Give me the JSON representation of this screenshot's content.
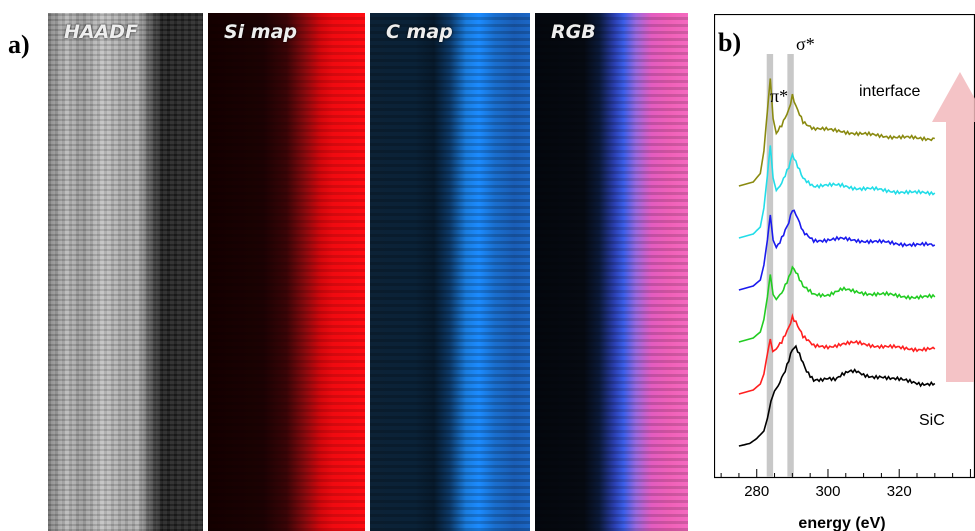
{
  "panel_a": {
    "label": "a)",
    "maps": [
      {
        "title": "HAADF"
      },
      {
        "title": "Si map"
      },
      {
        "title": "C map"
      },
      {
        "title": "RGB"
      }
    ]
  },
  "panel_b": {
    "label": "b)",
    "pi_label": "π*",
    "sigma_label": "σ*",
    "top_annotation": "interface",
    "bottom_annotation": "SiC"
  },
  "chart_data": {
    "type": "line",
    "xlabel": "energy (eV)",
    "ylabel": "",
    "xlim": [
      275,
      330
    ],
    "xticks": [
      280,
      300,
      320
    ],
    "series": [
      {
        "color": "#000000",
        "offset": 0,
        "points": [
          [
            275,
            0.0
          ],
          [
            278,
            0.05
          ],
          [
            280,
            0.15
          ],
          [
            282,
            0.3
          ],
          [
            283,
            0.55
          ],
          [
            284,
            0.9
          ],
          [
            285,
            1.1
          ],
          [
            286,
            1.2
          ],
          [
            288,
            1.5
          ],
          [
            290,
            1.95
          ],
          [
            291,
            2.0
          ],
          [
            292,
            1.85
          ],
          [
            294,
            1.5
          ],
          [
            296,
            1.3
          ],
          [
            298,
            1.3
          ],
          [
            300,
            1.35
          ],
          [
            302,
            1.35
          ],
          [
            304,
            1.45
          ],
          [
            306,
            1.5
          ],
          [
            308,
            1.48
          ],
          [
            310,
            1.4
          ],
          [
            312,
            1.38
          ],
          [
            315,
            1.4
          ],
          [
            318,
            1.35
          ],
          [
            322,
            1.3
          ],
          [
            326,
            1.25
          ],
          [
            330,
            1.25
          ]
        ]
      },
      {
        "color": "#ff2020",
        "offset": 1,
        "points": [
          [
            275,
            0.0
          ],
          [
            279,
            0.08
          ],
          [
            281,
            0.2
          ],
          [
            282,
            0.4
          ],
          [
            283,
            0.8
          ],
          [
            283.8,
            1.1
          ],
          [
            284.5,
            0.85
          ],
          [
            285.5,
            0.9
          ],
          [
            287,
            1.05
          ],
          [
            289,
            1.35
          ],
          [
            290,
            1.55
          ],
          [
            291,
            1.45
          ],
          [
            293,
            1.15
          ],
          [
            296,
            0.95
          ],
          [
            300,
            0.95
          ],
          [
            304,
            1.0
          ],
          [
            308,
            1.02
          ],
          [
            312,
            0.98
          ],
          [
            316,
            0.95
          ],
          [
            320,
            0.92
          ],
          [
            325,
            0.9
          ],
          [
            330,
            0.9
          ]
        ]
      },
      {
        "color": "#22cc22",
        "offset": 2,
        "points": [
          [
            275,
            0.0
          ],
          [
            279,
            0.08
          ],
          [
            281,
            0.2
          ],
          [
            282,
            0.45
          ],
          [
            283,
            0.9
          ],
          [
            283.8,
            1.35
          ],
          [
            284.6,
            0.95
          ],
          [
            285.5,
            0.85
          ],
          [
            287,
            1.0
          ],
          [
            289,
            1.3
          ],
          [
            290,
            1.5
          ],
          [
            291,
            1.4
          ],
          [
            293,
            1.1
          ],
          [
            296,
            0.95
          ],
          [
            300,
            0.95
          ],
          [
            304,
            1.05
          ],
          [
            308,
            1.0
          ],
          [
            312,
            0.97
          ],
          [
            316,
            0.95
          ],
          [
            320,
            0.92
          ],
          [
            325,
            0.9
          ],
          [
            330,
            0.9
          ]
        ]
      },
      {
        "color": "#1a1aee",
        "offset": 3,
        "points": [
          [
            275,
            0.0
          ],
          [
            279,
            0.08
          ],
          [
            281,
            0.2
          ],
          [
            282,
            0.5
          ],
          [
            283,
            1.0
          ],
          [
            283.8,
            1.5
          ],
          [
            284.6,
            1.0
          ],
          [
            285.5,
            0.85
          ],
          [
            287,
            1.05
          ],
          [
            289,
            1.35
          ],
          [
            290,
            1.6
          ],
          [
            291,
            1.5
          ],
          [
            293,
            1.15
          ],
          [
            296,
            1.0
          ],
          [
            300,
            1.0
          ],
          [
            304,
            1.02
          ],
          [
            308,
            1.0
          ],
          [
            312,
            0.97
          ],
          [
            316,
            0.95
          ],
          [
            320,
            0.93
          ],
          [
            325,
            0.9
          ],
          [
            330,
            0.9
          ]
        ]
      },
      {
        "color": "#22dde8",
        "offset": 4,
        "points": [
          [
            275,
            0.0
          ],
          [
            279,
            0.08
          ],
          [
            281,
            0.22
          ],
          [
            282,
            0.6
          ],
          [
            283,
            1.25
          ],
          [
            283.8,
            1.85
          ],
          [
            284.6,
            1.2
          ],
          [
            285.5,
            0.95
          ],
          [
            287,
            1.1
          ],
          [
            289,
            1.4
          ],
          [
            290,
            1.65
          ],
          [
            291,
            1.5
          ],
          [
            293,
            1.2
          ],
          [
            296,
            1.05
          ],
          [
            300,
            1.05
          ],
          [
            304,
            1.05
          ],
          [
            308,
            1.0
          ],
          [
            312,
            0.98
          ],
          [
            316,
            0.95
          ],
          [
            320,
            0.93
          ],
          [
            325,
            0.9
          ],
          [
            330,
            0.9
          ]
        ]
      },
      {
        "color": "#8a8a10",
        "offset": 5,
        "points": [
          [
            275,
            0.0
          ],
          [
            279,
            0.08
          ],
          [
            281,
            0.25
          ],
          [
            282,
            0.7
          ],
          [
            283,
            1.5
          ],
          [
            283.8,
            2.15
          ],
          [
            284.6,
            1.35
          ],
          [
            285.5,
            1.05
          ],
          [
            287,
            1.2
          ],
          [
            289,
            1.5
          ],
          [
            290,
            1.8
          ],
          [
            291,
            1.6
          ],
          [
            293,
            1.3
          ],
          [
            296,
            1.15
          ],
          [
            300,
            1.12
          ],
          [
            304,
            1.1
          ],
          [
            308,
            1.05
          ],
          [
            312,
            1.02
          ],
          [
            316,
            1.0
          ],
          [
            320,
            0.98
          ],
          [
            325,
            0.95
          ],
          [
            330,
            0.95
          ]
        ]
      }
    ],
    "shaded_bands_ev": [
      [
        282.8,
        284.6
      ],
      [
        288.6,
        290.4
      ]
    ]
  },
  "colors": {
    "band": "#c8c8c8",
    "arrow": "#f2b8bc"
  }
}
